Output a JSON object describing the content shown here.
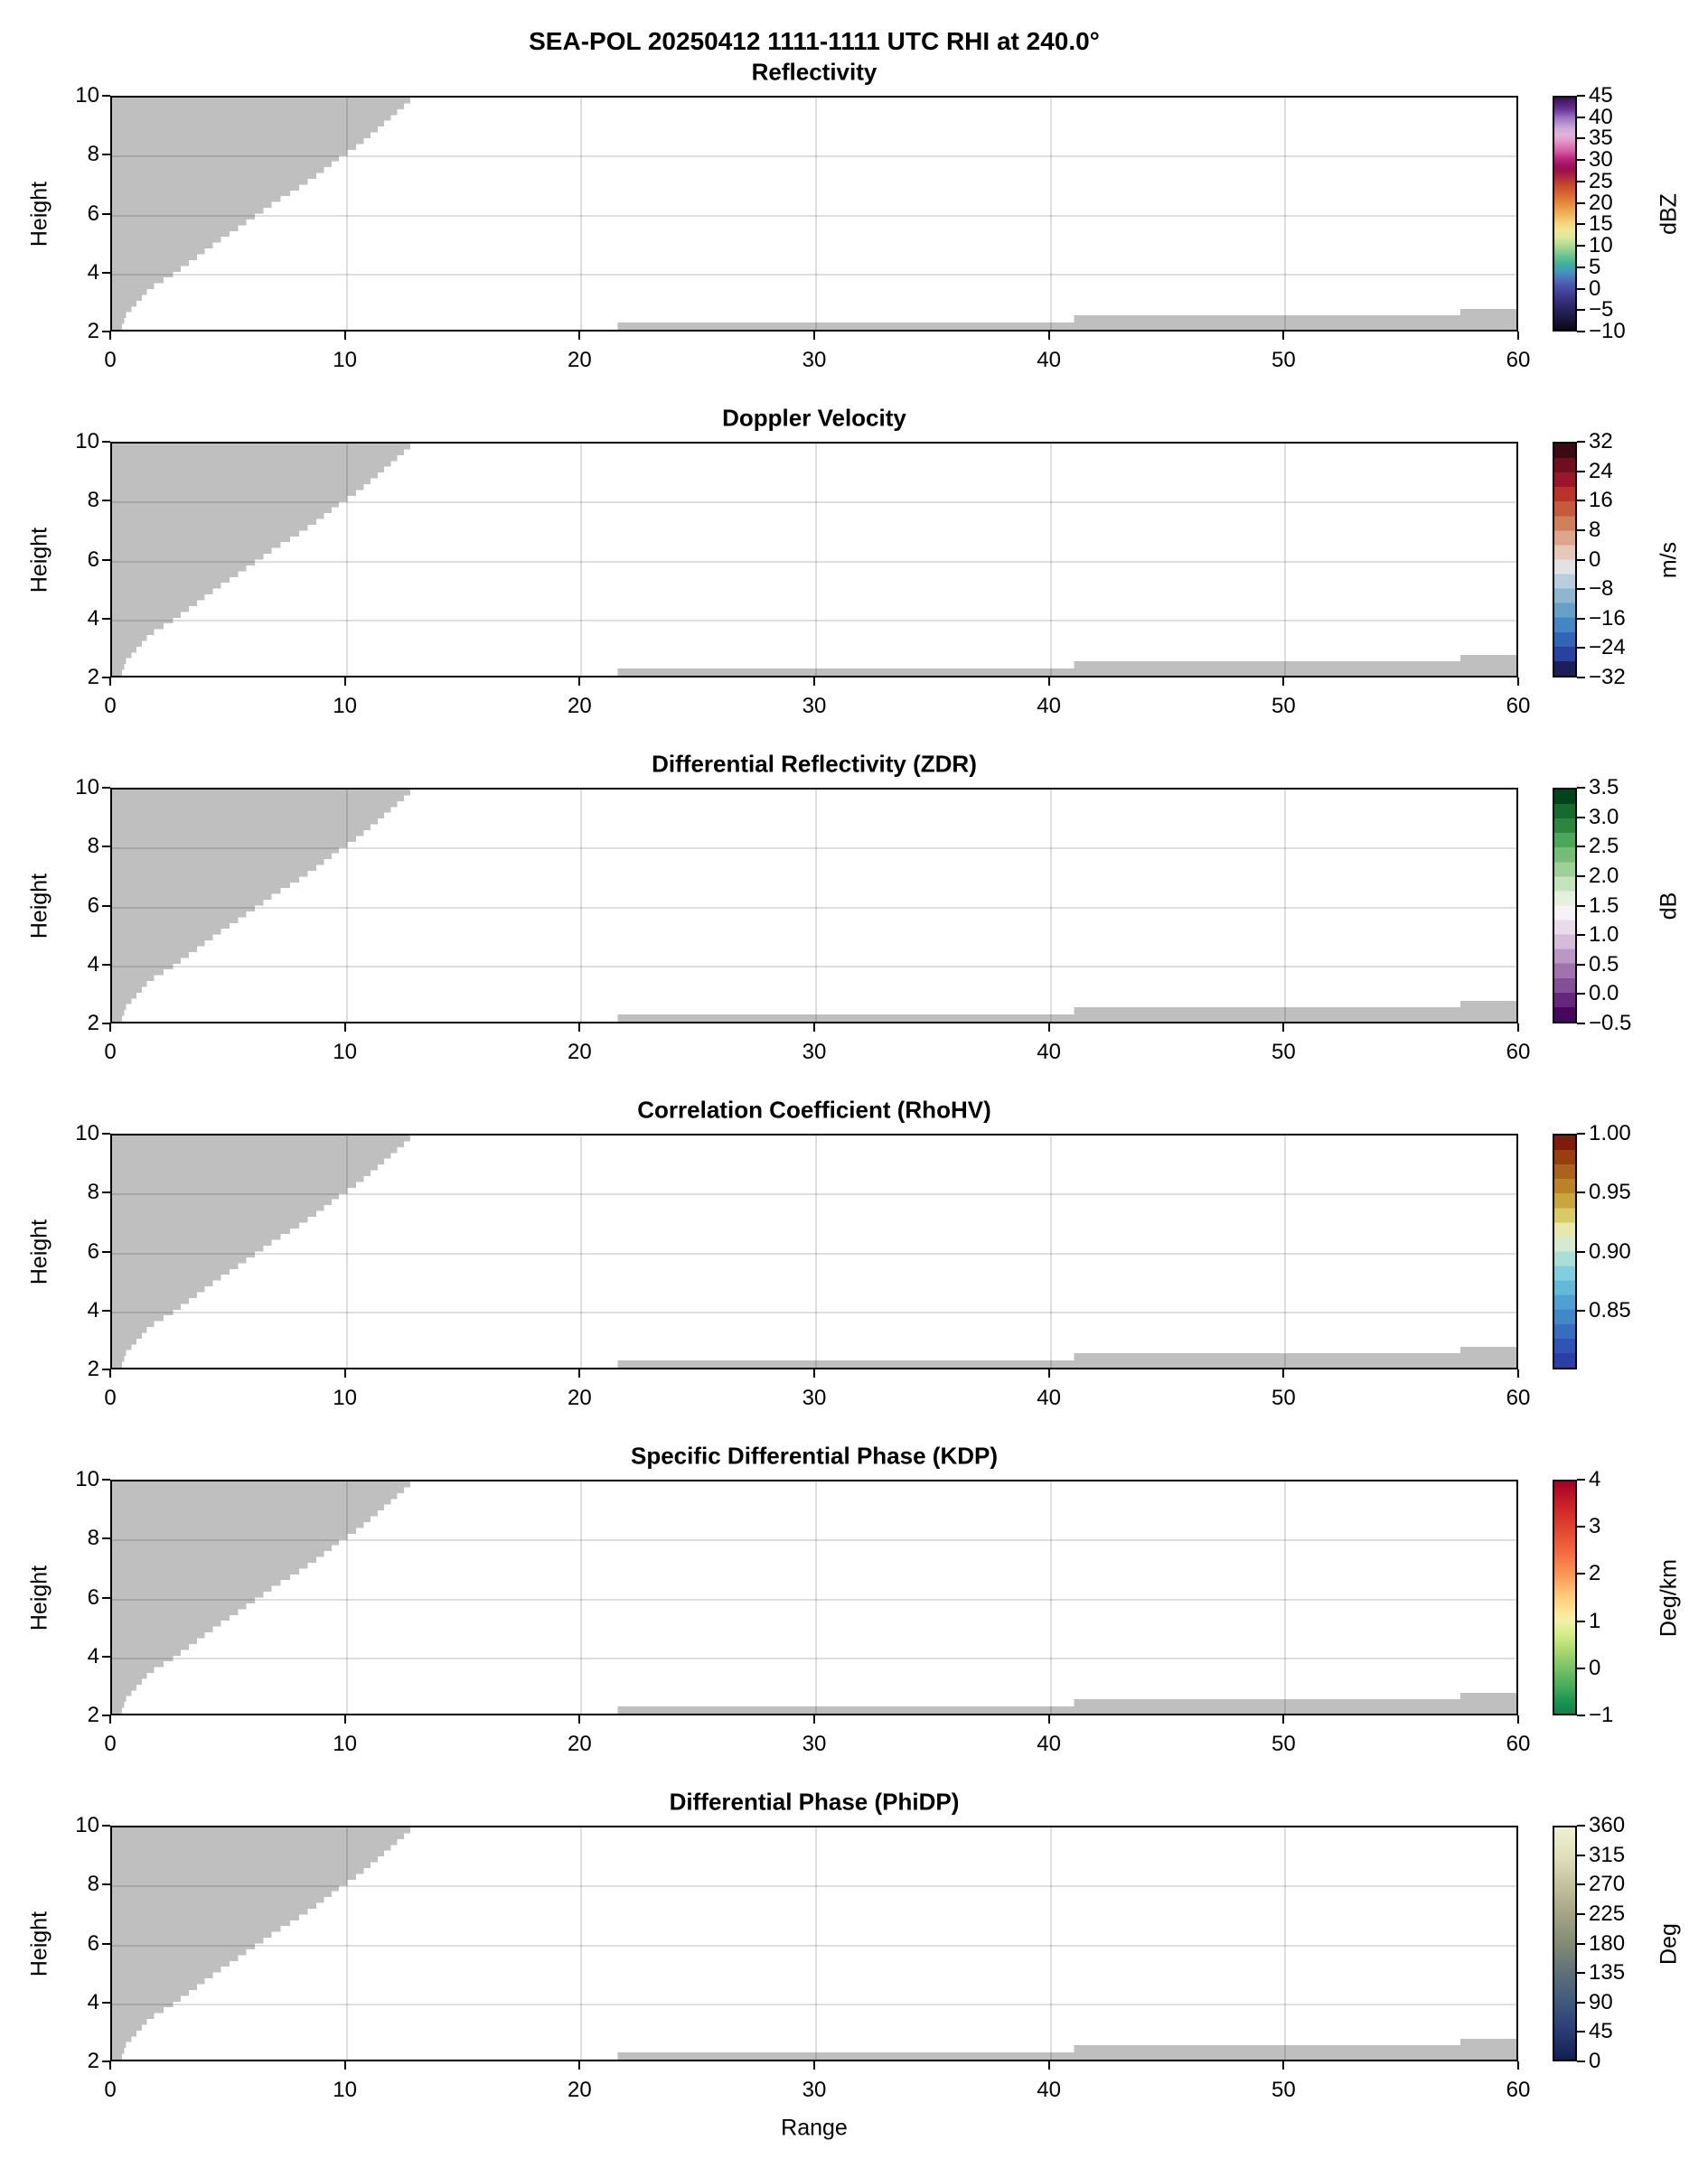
{
  "figure": {
    "suptitle": "SEA-POL 20250412 1111-1111 UTC RHI at 240.0°",
    "xlabel": "Range",
    "ylabel": "Height",
    "background": "#ffffff",
    "mask_color": "#bfbfbf",
    "grid_color": "rgba(0,0,0,0.13)",
    "axis_color": "#000000"
  },
  "axes": {
    "x_ticks": [
      {
        "label": "0",
        "value": 0
      },
      {
        "label": "10",
        "value": 10
      },
      {
        "label": "20",
        "value": 20
      },
      {
        "label": "30",
        "value": 30
      },
      {
        "label": "40",
        "value": 40
      },
      {
        "label": "50",
        "value": 50
      },
      {
        "label": "60",
        "value": 60
      }
    ],
    "y_ticks": [
      {
        "label": "10",
        "value": 10
      },
      {
        "label": "8",
        "value": 8
      },
      {
        "label": "6",
        "value": 6
      },
      {
        "label": "4",
        "value": 4
      },
      {
        "label": "2",
        "value": 2
      }
    ],
    "x_gridlines": [
      10,
      20,
      30,
      40,
      50
    ],
    "y_gridlines": [
      4,
      6,
      8
    ]
  },
  "panels": [
    {
      "title": "Reflectivity",
      "unit": "dBZ",
      "cbar": {
        "mode": "smooth",
        "stops": [
          [
            "#3a1151",
            0
          ],
          [
            "#68329b",
            0.05
          ],
          [
            "#9e77c1",
            0.09
          ],
          [
            "#c9a8d8",
            0.13
          ],
          [
            "#e0b4da",
            0.16
          ],
          [
            "#e294c6",
            0.19
          ],
          [
            "#d55ca4",
            0.23
          ],
          [
            "#bd2a83",
            0.26
          ],
          [
            "#a31260",
            0.29
          ],
          [
            "#99104f",
            0.31
          ],
          [
            "#ad2739",
            0.34
          ],
          [
            "#c64c2d",
            0.38
          ],
          [
            "#d96b30",
            0.42
          ],
          [
            "#e68e3e",
            0.46
          ],
          [
            "#edb356",
            0.5
          ],
          [
            "#f1d47b",
            0.54
          ],
          [
            "#f0e692",
            0.57
          ],
          [
            "#dcea9c",
            0.6
          ],
          [
            "#b8dd92",
            0.63
          ],
          [
            "#8bd08e",
            0.66
          ],
          [
            "#5cc192",
            0.69
          ],
          [
            "#3fae9e",
            0.72
          ],
          [
            "#4496bd",
            0.75
          ],
          [
            "#4b74b8",
            0.78
          ],
          [
            "#4b55a8",
            0.81
          ],
          [
            "#413b90",
            0.85
          ],
          [
            "#312a6e",
            0.89
          ],
          [
            "#231d4e",
            0.93
          ],
          [
            "#15122e",
            0.97
          ],
          [
            "#0a0814",
            1.0
          ]
        ],
        "ticks": [
          [
            "45",
            0
          ],
          [
            "40",
            0.0909
          ],
          [
            "35",
            0.1818
          ],
          [
            "30",
            0.2727
          ],
          [
            "25",
            0.3636
          ],
          [
            "20",
            0.4545
          ],
          [
            "15",
            0.5455
          ],
          [
            "10",
            0.6364
          ],
          [
            "5",
            0.7273
          ],
          [
            "0",
            0.8182
          ],
          [
            "−5",
            0.9091
          ],
          [
            "−10",
            1
          ]
        ]
      }
    },
    {
      "title": "Doppler Velocity",
      "unit": "m/s",
      "cbar": {
        "mode": "blocks",
        "blocks": [
          "#3b0a12",
          "#6e0e1e",
          "#9c152a",
          "#b93326",
          "#c55a3c",
          "#cf7f5b",
          "#dba68a",
          "#e4c9ba",
          "#e0e3e3",
          "#b6cedd",
          "#8db7cf",
          "#63a1c7",
          "#4287c1",
          "#3165b5",
          "#28439f",
          "#1b2158"
        ],
        "ticks": [
          [
            "32",
            0
          ],
          [
            "24",
            0.125
          ],
          [
            "16",
            0.25
          ],
          [
            "8",
            0.375
          ],
          [
            "0",
            0.5
          ],
          [
            "−8",
            0.625
          ],
          [
            "−16",
            0.75
          ],
          [
            "−24",
            0.875
          ],
          [
            "−32",
            1
          ]
        ]
      }
    },
    {
      "title": "Differential Reflectivity (ZDR)",
      "unit": "dB",
      "cbar": {
        "mode": "blocks",
        "blocks": [
          "#00441b",
          "#156b2e",
          "#2d8540",
          "#4da75b",
          "#74bd74",
          "#9ed096",
          "#c3e3bb",
          "#e2f0dc",
          "#f6f2f5",
          "#e9dcea",
          "#d5bcd9",
          "#bb97c5",
          "#a073af",
          "#834f96",
          "#65267c",
          "#46085c"
        ],
        "ticks": [
          [
            "3.5",
            0
          ],
          [
            "3.0",
            0.125
          ],
          [
            "2.5",
            0.25
          ],
          [
            "2.0",
            0.375
          ],
          [
            "1.5",
            0.5
          ],
          [
            "1.0",
            0.625
          ],
          [
            "0.5",
            0.75
          ],
          [
            "0.0",
            0.875
          ],
          [
            "−0.5",
            1
          ]
        ]
      }
    },
    {
      "title": "Correlation Coefficient (RhoHV)",
      "unit": null,
      "cbar": {
        "mode": "blocks",
        "blocks": [
          "#801c0c",
          "#97400e",
          "#a9631a",
          "#b98427",
          "#c7a73c",
          "#d8cb67",
          "#e7e8ad",
          "#d5ead0",
          "#a9dfd6",
          "#80cfdf",
          "#63b9d9",
          "#4fa0d2",
          "#4287c8",
          "#386dbe",
          "#3054b4",
          "#2a3fa8"
        ],
        "ticks": [
          [
            "1.00",
            0
          ],
          [
            "0.95",
            0.25
          ],
          [
            "0.90",
            0.5
          ],
          [
            "0.85",
            0.75
          ]
        ]
      }
    },
    {
      "title": "Specific Differential Phase (KDP)",
      "unit": "Deg/km",
      "cbar": {
        "mode": "smooth",
        "stops": [
          [
            "#a50026",
            0
          ],
          [
            "#cb2027",
            0.1
          ],
          [
            "#e04430",
            0.2
          ],
          [
            "#f1683f",
            0.3
          ],
          [
            "#fa9656",
            0.4
          ],
          [
            "#fdc574",
            0.48
          ],
          [
            "#fee695",
            0.56
          ],
          [
            "#f2f0a9",
            0.6
          ],
          [
            "#d9ef8b",
            0.65
          ],
          [
            "#a8d96a",
            0.73
          ],
          [
            "#78c566",
            0.8
          ],
          [
            "#47ad5d",
            0.88
          ],
          [
            "#199450",
            0.95
          ],
          [
            "#0f8447",
            1
          ]
        ],
        "ticks": [
          [
            "4",
            0
          ],
          [
            "3",
            0.2
          ],
          [
            "2",
            0.4
          ],
          [
            "1",
            0.6
          ],
          [
            "0",
            0.8
          ],
          [
            "−1",
            1
          ]
        ]
      }
    },
    {
      "title": "Differential Phase (PhiDP)",
      "unit": "Deg",
      "cbar": {
        "mode": "smooth",
        "stops": [
          [
            "#f0f1d4",
            0
          ],
          [
            "#dfe0b8",
            0.125
          ],
          [
            "#c2c39c",
            0.25
          ],
          [
            "#a4a485",
            0.375
          ],
          [
            "#838b74",
            0.5
          ],
          [
            "#5f7078",
            0.625
          ],
          [
            "#3f5a7e",
            0.75
          ],
          [
            "#2a3c74",
            0.875
          ],
          [
            "#111f54",
            1
          ]
        ],
        "ticks": [
          [
            "360",
            0
          ],
          [
            "315",
            0.125
          ],
          [
            "270",
            0.25
          ],
          [
            "225",
            0.375
          ],
          [
            "180",
            0.5
          ],
          [
            "135",
            0.625
          ],
          [
            "90",
            0.75
          ],
          [
            "45",
            0.875
          ],
          [
            "0",
            1
          ]
        ]
      }
    }
  ],
  "chart_data": {
    "type": "heatmap",
    "title": "SEA-POL 20250412 1111-1111 UTC RHI at 240.0°",
    "subtitle_panels": [
      "Reflectivity",
      "Doppler Velocity",
      "Differential Reflectivity (ZDR)",
      "Correlation Coefficient (RhoHV)",
      "Specific Differential Phase (KDP)",
      "Differential Phase (PhiDP)"
    ],
    "xlabel": "Range",
    "ylabel": "Height",
    "xlim": [
      0,
      60
    ],
    "ylim": [
      2,
      10
    ],
    "grid": true,
    "legend_position": "right-colorbars",
    "panels": [
      {
        "title": "Reflectivity",
        "units": "dBZ",
        "scale_min": -10,
        "scale_max": 45,
        "tick_step": 5
      },
      {
        "title": "Doppler Velocity",
        "units": "m/s",
        "scale_min": -32,
        "scale_max": 32,
        "tick_step": 8
      },
      {
        "title": "Differential Reflectivity (ZDR)",
        "units": "dB",
        "scale_min": -0.5,
        "scale_max": 3.5,
        "tick_step": 0.5
      },
      {
        "title": "Correlation Coefficient (RhoHV)",
        "units": "",
        "scale_min": 0.8,
        "scale_max": 1.0,
        "tick_step": 0.05
      },
      {
        "title": "Specific Differential Phase (KDP)",
        "units": "Deg/km",
        "scale_min": -1,
        "scale_max": 4,
        "tick_step": 1
      },
      {
        "title": "Differential Phase (PhiDP)",
        "units": "Deg",
        "scale_min": 0,
        "scale_max": 360,
        "tick_step": 45
      }
    ],
    "visible_data": "No radar echo values are rendered in any panel; every panel shows identical gray no-data mask regions only.",
    "mask": {
      "wedge_boundary_points": [
        [
          2,
          0.35
        ],
        [
          2.6,
          0.6
        ],
        [
          3,
          1.05
        ],
        [
          3.5,
          1.6
        ],
        [
          4,
          2.6
        ],
        [
          4.5,
          3.45
        ],
        [
          5,
          4.3
        ],
        [
          5.5,
          5.2
        ],
        [
          6,
          6.1
        ],
        [
          6.5,
          7.0
        ],
        [
          7,
          8.0
        ],
        [
          7.5,
          8.9
        ],
        [
          8,
          9.7
        ],
        [
          8.5,
          10.6
        ],
        [
          9,
          11.35
        ],
        [
          9.5,
          12.05
        ],
        [
          10,
          12.75
        ]
      ],
      "wedge_step_height": 0.2,
      "bottom_strips": [
        {
          "x0": 21.6,
          "x1": 41.1,
          "height_top": 2.25
        },
        {
          "x0": 41.1,
          "x1": 57.6,
          "height_top": 2.5
        },
        {
          "x0": 57.6,
          "x1": 60,
          "height_top": 2.72
        }
      ]
    }
  }
}
